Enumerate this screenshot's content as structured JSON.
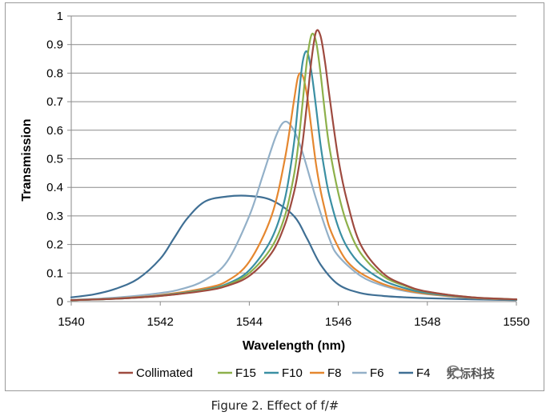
{
  "chart_data": {
    "type": "line",
    "title": "",
    "xlabel": "Wavelength (nm)",
    "ylabel": "Transmission",
    "xlim": [
      1540,
      1550
    ],
    "ylim": [
      0,
      1
    ],
    "xticks": [
      1540,
      1542,
      1544,
      1546,
      1548,
      1550
    ],
    "yticks": [
      0,
      0.1,
      0.2,
      0.3,
      0.4,
      0.5,
      0.6,
      0.7,
      0.8,
      0.9,
      1
    ],
    "ytick_labels": [
      "0",
      "0.1",
      "0.2",
      "0.3",
      "0.4",
      "0.5",
      "0.6",
      "0.7",
      "0.8",
      "0.9",
      "1"
    ],
    "grid": "horizontal",
    "legend_position": "bottom",
    "series": [
      {
        "name": "Collimated",
        "color": "#9E4A3F",
        "x": [
          1540,
          1541,
          1542,
          1543,
          1543.5,
          1544,
          1544.5,
          1544.8,
          1545,
          1545.1,
          1545.2,
          1545.3,
          1545.4,
          1545.5,
          1545.6,
          1545.7,
          1545.8,
          1546,
          1546.2,
          1546.5,
          1547,
          1547.5,
          1548,
          1549,
          1550
        ],
        "y": [
          0.005,
          0.01,
          0.02,
          0.038,
          0.055,
          0.09,
          0.17,
          0.27,
          0.38,
          0.46,
          0.56,
          0.7,
          0.85,
          0.945,
          0.93,
          0.84,
          0.72,
          0.5,
          0.35,
          0.2,
          0.1,
          0.058,
          0.035,
          0.015,
          0.008
        ]
      },
      {
        "name": "F15",
        "color": "#8DB04A",
        "x": [
          1540,
          1541,
          1542,
          1543,
          1543.5,
          1544,
          1544.5,
          1544.8,
          1545,
          1545.1,
          1545.2,
          1545.3,
          1545.4,
          1545.5,
          1545.6,
          1545.7,
          1545.8,
          1546,
          1546.2,
          1546.5,
          1547,
          1547.5,
          1548,
          1549,
          1550
        ],
        "y": [
          0.005,
          0.01,
          0.02,
          0.04,
          0.058,
          0.1,
          0.19,
          0.3,
          0.44,
          0.55,
          0.7,
          0.85,
          0.935,
          0.91,
          0.8,
          0.66,
          0.54,
          0.38,
          0.27,
          0.17,
          0.09,
          0.055,
          0.034,
          0.015,
          0.008
        ]
      },
      {
        "name": "F10",
        "color": "#3A8FA3",
        "x": [
          1540,
          1541,
          1542,
          1543,
          1543.5,
          1544,
          1544.5,
          1544.8,
          1545,
          1545.1,
          1545.2,
          1545.3,
          1545.4,
          1545.5,
          1545.6,
          1545.7,
          1545.8,
          1546,
          1546.2,
          1546.5,
          1547,
          1547.5,
          1548,
          1549,
          1550
        ],
        "y": [
          0.005,
          0.01,
          0.021,
          0.042,
          0.062,
          0.11,
          0.22,
          0.36,
          0.55,
          0.7,
          0.84,
          0.875,
          0.8,
          0.68,
          0.55,
          0.45,
          0.37,
          0.26,
          0.19,
          0.13,
          0.075,
          0.047,
          0.03,
          0.014,
          0.007
        ]
      },
      {
        "name": "F8",
        "color": "#E5872F",
        "x": [
          1540,
          1541,
          1542,
          1543,
          1543.5,
          1544,
          1544.5,
          1544.8,
          1545,
          1545.1,
          1545.2,
          1545.3,
          1545.4,
          1545.5,
          1545.6,
          1545.7,
          1545.8,
          1546,
          1546.2,
          1546.5,
          1547,
          1547.5,
          1548,
          1549,
          1550
        ],
        "y": [
          0.005,
          0.011,
          0.023,
          0.047,
          0.072,
          0.14,
          0.3,
          0.5,
          0.7,
          0.79,
          0.79,
          0.72,
          0.6,
          0.48,
          0.39,
          0.32,
          0.26,
          0.19,
          0.14,
          0.1,
          0.062,
          0.04,
          0.027,
          0.013,
          0.007
        ]
      },
      {
        "name": "F6",
        "color": "#93B0C8",
        "x": [
          1540,
          1541,
          1542,
          1542.5,
          1543,
          1543.5,
          1544,
          1544.3,
          1544.6,
          1544.8,
          1545,
          1545.2,
          1545.5,
          1545.8,
          1546,
          1546.5,
          1547,
          1547.5,
          1548,
          1549,
          1550
        ],
        "y": [
          0.006,
          0.014,
          0.03,
          0.045,
          0.075,
          0.14,
          0.3,
          0.44,
          0.58,
          0.63,
          0.6,
          0.52,
          0.36,
          0.22,
          0.16,
          0.09,
          0.056,
          0.037,
          0.026,
          0.013,
          0.007
        ]
      },
      {
        "name": "F4",
        "color": "#3F6F94",
        "x": [
          1540,
          1540.5,
          1541,
          1541.5,
          1542,
          1542.3,
          1542.6,
          1543,
          1543.5,
          1544,
          1544.5,
          1545,
          1545.3,
          1545.6,
          1546,
          1546.5,
          1547,
          1547.5,
          1548,
          1549,
          1550
        ],
        "y": [
          0.015,
          0.025,
          0.045,
          0.08,
          0.15,
          0.22,
          0.29,
          0.35,
          0.368,
          0.37,
          0.355,
          0.3,
          0.22,
          0.13,
          0.06,
          0.03,
          0.02,
          0.015,
          0.012,
          0.008,
          0.005
        ]
      }
    ]
  },
  "watermark": {
    "text": "频标科技",
    "icon": "wechat-icon"
  },
  "caption": "Figure 2. Effect of f/#"
}
